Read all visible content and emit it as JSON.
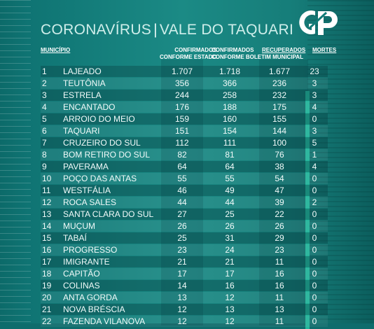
{
  "title": {
    "part1": "CORONAVÍRUS",
    "sep": "|",
    "part2": "VALE DO TAQUARI"
  },
  "logo": {
    "text": "GP"
  },
  "headers": {
    "municipio": "MUNICÍPIO",
    "confirmados_estado_1": "CONFIRMADOS",
    "confirmados_estado_2": "CONFORME ESTADO",
    "confirmados_municipal_1": "CONFIRMADOS",
    "confirmados_municipal_2": "CONFORME BOLETIM MUNICIPAL",
    "recuperados": "RECUPERADOS",
    "mortes": "MORTES"
  },
  "rows": [
    [
      "1",
      "Lajeado",
      "1.707",
      "1.718",
      "1.677",
      "23"
    ],
    [
      "2",
      "Teutônia",
      "356",
      "366",
      "236",
      "3"
    ],
    [
      "3",
      "Estrela",
      "244",
      "258",
      "232",
      "3"
    ],
    [
      "4",
      "Encantado",
      "176",
      "188",
      "175",
      "4"
    ],
    [
      "5",
      "Arroio do Meio",
      "159",
      "160",
      "155",
      "0"
    ],
    [
      "6",
      "Taquari",
      "151",
      "154",
      "144",
      "3"
    ],
    [
      "7",
      "Cruzeiro do Sul",
      "112",
      "111",
      "100",
      "5"
    ],
    [
      "8",
      "Bom Retiro do Sul",
      "82",
      "81",
      "76",
      "1"
    ],
    [
      "9",
      "Paverama",
      "64",
      "64",
      "38",
      "4"
    ],
    [
      "10",
      "Poço das Antas",
      "55",
      "55",
      "54",
      "0"
    ],
    [
      "11",
      "Westfália",
      "46",
      "49",
      "47",
      "0"
    ],
    [
      "12",
      "Roca Sales",
      "44",
      "44",
      "39",
      "2"
    ],
    [
      "13",
      "Santa Clara do Sul",
      "27",
      "25",
      "22",
      "0"
    ],
    [
      "14",
      "Muçum",
      "26",
      "26",
      "26",
      "0"
    ],
    [
      "15",
      "Tabaí",
      "25",
      "31",
      "29",
      "0"
    ],
    [
      "16",
      "Progresso",
      "23",
      "24",
      "23",
      "0"
    ],
    [
      "17",
      "Imigrante",
      "21",
      "21",
      "11",
      "0"
    ],
    [
      "18",
      "Capitão",
      "17",
      "17",
      "16",
      "0"
    ],
    [
      "19",
      "Colinas",
      "14",
      "16",
      "16",
      "0"
    ],
    [
      "20",
      "Anta Gorda",
      "13",
      "12",
      "11",
      "0"
    ],
    [
      "21",
      "Nova Bréscia",
      "12",
      "13",
      "13",
      "0"
    ],
    [
      "22",
      "Fazenda Vilanova",
      "12",
      "12",
      "11",
      "0"
    ]
  ]
}
